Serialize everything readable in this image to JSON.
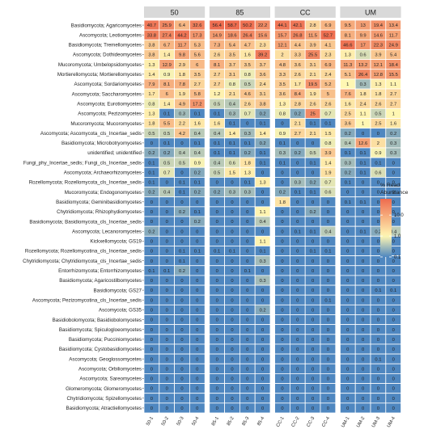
{
  "chart_data": {
    "type": "heatmap",
    "legend": {
      "title_lines": [
        "% Read",
        "Abundance"
      ],
      "ticks": [
        10.0,
        1.0,
        0.1
      ],
      "tick_labels": [
        "10.0",
        "1.0",
        "0.1"
      ],
      "scale": "log",
      "placement": "right"
    },
    "colors": {
      "high": "#ee6b4e",
      "mid": "#fff7b3",
      "low": "#4f87c0"
    },
    "facets": [
      {
        "name": "50",
        "samples": [
          "50-1",
          "50-2",
          "50-3",
          "50-4"
        ]
      },
      {
        "name": "85",
        "samples": [
          "85-1",
          "85-2",
          "85-3",
          "85-4"
        ]
      },
      {
        "name": "CC",
        "samples": [
          "CC-1",
          "CC-2",
          "CC-3",
          "CC-4"
        ]
      },
      {
        "name": "UM",
        "samples": [
          "UM-1",
          "UM-2",
          "UM-3",
          "UM-4"
        ]
      }
    ],
    "rows": [
      "Basidiomycota; Agaricomycetes",
      "Ascomycota; Leotiomycetes",
      "Basidiomycota; Tremellomycetes",
      "Ascomycota; Dothideomycetes",
      "Mucoromycota; Umbelopsidomycetes",
      "Mortierellomycota; Mortierellomycetes",
      "Ascomycota; Sordariomycetes",
      "Ascomycota; Saccharomycetes",
      "Ascomycota; Eurotiomycetes",
      "Ascomycota; Pezizomycetes",
      "Mucoromycota; Mucoromycetes",
      "Ascomycota; Ascomycota_cls_Incertae_sedis",
      "Basidiomycota; Microbotryomycetes",
      "unidentified; unidentified",
      "Fungi_phy_Incertae_sedis; Fungi_cls_Incertae_sedis",
      "Ascomycota; Archaeorhizomycetes",
      "Rozellomycota; Rozellomycota_cls_Incertae_sedis",
      "Mucoromycota; Endogonomycetes",
      "Basidiomycota; Geminibasidiomycetes",
      "Chytridiomycota; Rhizophydiomycetes",
      "Basidiomycota; Basidiomycota_cls_Incertae_sedis",
      "Ascomycota; Lecanoromycetes",
      "Kickxellomycota; GS19",
      "Rozellomycota; Rozellomycotina_cls_Incertae_sedis",
      "Chytridiomycota; Chytridiomycota_cls_Incertae_sedis",
      "Entorrhizomycota; Entorrhizomycetes",
      "Basidiomycota; Agaricostilbomycetes",
      "Basidiomycota; GS27",
      "Ascomycota; Pezizomycotina_cls_Incertae_sedis",
      "Ascomycota; GS35",
      "Basidiobolomycota; Basidiobolomycetes",
      "Basidiomycota; Spiculogloeomycetes",
      "Basidiomycota; Pucciniomycetes",
      "Basidiomycota; Cystobasidiomycetes",
      "Ascomycota; Geoglossomycetes",
      "Ascomycota; Orbiliomycetes",
      "Ascomycota; Sareomycetes",
      "Glomeromycota; Glomeromycetes",
      "Chytridiomycota; Spizellomycetes",
      "Basidiomycota; Atractiellomycetes"
    ],
    "values": [
      [
        40.7,
        25.9,
        6.4,
        32.6,
        56.4,
        58.7,
        50.2,
        22.2,
        44.1,
        42.1,
        2.8,
        6.9,
        9.5,
        13,
        19.4,
        13.4
      ],
      [
        33.8,
        27.4,
        44.2,
        17.3,
        14.9,
        18.6,
        26.4,
        15.6,
        15.7,
        26.8,
        11.5,
        52.7,
        8.1,
        9.9,
        14.6,
        11.7
      ],
      [
        3.8,
        6.7,
        11.7,
        5.3,
        7.3,
        5.4,
        4.7,
        2.3,
        12.1,
        4.4,
        3.9,
        4.1,
        46.6,
        17,
        22.3,
        24.9
      ],
      [
        3.8,
        1.4,
        9.8,
        5.6,
        2.6,
        3.5,
        1.6,
        39.2,
        2.0,
        3.3,
        25.5,
        2.3,
        1.3,
        0.6,
        3.9,
        5.4
      ],
      [
        1.3,
        12.9,
        2.9,
        6,
        8.1,
        3.7,
        3.5,
        3.7,
        4.8,
        3.6,
        3.1,
        6.9,
        11.3,
        13.2,
        12.1,
        18.4
      ],
      [
        1.4,
        0.9,
        1.8,
        3.5,
        2.7,
        3.1,
        0.8,
        3.6,
        3.3,
        2.6,
        2.1,
        2.4,
        5.1,
        26.4,
        12.8,
        15.5
      ],
      [
        7.9,
        8.1,
        7.8,
        2.7,
        2.7,
        0.8,
        0.5,
        2.4,
        3.5,
        1.7,
        19.5,
        5.2,
        1,
        0.3,
        1.3,
        1.1
      ],
      [
        1.7,
        6,
        1.9,
        5.8,
        1.2,
        2.1,
        4.6,
        3.1,
        3.6,
        8.4,
        1.9,
        5,
        7.6,
        1.8,
        1.8,
        2.7
      ],
      [
        0.8,
        1.4,
        4.9,
        17.2,
        0.5,
        0.4,
        2.6,
        3.8,
        1.3,
        2.8,
        2.6,
        2.6,
        1.6,
        2.4,
        2.6,
        2.7
      ],
      [
        1.3,
        0.1,
        0.3,
        0.1,
        0.1,
        0.3,
        0.7,
        0.2,
        0.8,
        0.2,
        25,
        0.7,
        2.5,
        1.1,
        0.5,
        1
      ],
      [
        1.8,
        5.5,
        2.2,
        1.6,
        1.6,
        0.1,
        0,
        0.1,
        0,
        2.1,
        0.1,
        0.1,
        3.6,
        1,
        2.5,
        1.6
      ],
      [
        0.5,
        0.5,
        4.2,
        0.4,
        0.4,
        1.4,
        0.3,
        1.4,
        0.9,
        2.7,
        2.1,
        1.5,
        0.2,
        0,
        0,
        0.2
      ],
      [
        0,
        0.1,
        0,
        0.1,
        0.1,
        0.1,
        0.1,
        0.2,
        0.1,
        0,
        0,
        0.8,
        0.4,
        12.6,
        2,
        0.3
      ],
      [
        0.2,
        0.2,
        0.4,
        0.4,
        0.1,
        0.1,
        0.2,
        0.1,
        0.3,
        0.2,
        0.5,
        3.9,
        0.1,
        0.1,
        0.9,
        0.3
      ],
      [
        0.1,
        0.5,
        0.5,
        0.9,
        0.4,
        0.6,
        1.8,
        0.1,
        0.1,
        0,
        0.1,
        1.4,
        0.3,
        0.1,
        0.1,
        0
      ],
      [
        0.1,
        0.7,
        0,
        0.2,
        0.5,
        1.5,
        1.3,
        0,
        0,
        0,
        0,
        1.9,
        0.2,
        0.1,
        0.6,
        0
      ],
      [
        0.1,
        0,
        0.1,
        0.1,
        0,
        0,
        0.1,
        1.3,
        0,
        0.3,
        0.2,
        0.7,
        0.1,
        0,
        0,
        0
      ],
      [
        0.2,
        0.4,
        0.1,
        0.2,
        0.2,
        0.3,
        0.3,
        0,
        0.2,
        0.1,
        0.1,
        0.6,
        0,
        0,
        0,
        0
      ],
      [
        0,
        0,
        0,
        0,
        0,
        0,
        0,
        0,
        1.8,
        0,
        0,
        0,
        0.1,
        0.1,
        0,
        0
      ],
      [
        0,
        0,
        0.2,
        0.1,
        0,
        0,
        0,
        1.1,
        0,
        0,
        0.2,
        0,
        0,
        0,
        0,
        0
      ],
      [
        0,
        0,
        0,
        0.2,
        0,
        0,
        0,
        0.4,
        0,
        0,
        0,
        0,
        0,
        0,
        0,
        0
      ],
      [
        0.2,
        0,
        0,
        0,
        0,
        0,
        0,
        0,
        0,
        0.1,
        0.1,
        0.4,
        0,
        0.1,
        0.2,
        0.4
      ],
      [
        0,
        0,
        0,
        0,
        0,
        0,
        0,
        1.1,
        0,
        0,
        0,
        0,
        0,
        0,
        0,
        0
      ],
      [
        0,
        0,
        0.1,
        0.1,
        0.1,
        0.1,
        0,
        0.1,
        0,
        0,
        0.1,
        0.1,
        0,
        0,
        0,
        0
      ],
      [
        0,
        0,
        0.1,
        0,
        0,
        0,
        0,
        0.3,
        0,
        0,
        0,
        0,
        0,
        0,
        0,
        0
      ],
      [
        0.1,
        0.1,
        0.2,
        0,
        0,
        0,
        0.1,
        0,
        0,
        0,
        0,
        0,
        0,
        0,
        0,
        0
      ],
      [
        0,
        0,
        0,
        0,
        0,
        0,
        0,
        0.3,
        0,
        0,
        0,
        0,
        0,
        0,
        0,
        0
      ],
      [
        0,
        0,
        0,
        0,
        0,
        0,
        0,
        0,
        0,
        0,
        0,
        0,
        0,
        0,
        0.1,
        0.1
      ],
      [
        0,
        0,
        0,
        0,
        0,
        0,
        0,
        0,
        0,
        0,
        0,
        0.1,
        0,
        0,
        0,
        0
      ],
      [
        0,
        0,
        0,
        0,
        0,
        0,
        0,
        0.2,
        0,
        0,
        0,
        0,
        0,
        0,
        0,
        0
      ],
      [
        0,
        0,
        0,
        0,
        0,
        0,
        0,
        0,
        0,
        0,
        0,
        0,
        0,
        0,
        0,
        0
      ],
      [
        0,
        0,
        0,
        0,
        0,
        0,
        0,
        0,
        0,
        0,
        0,
        0,
        0,
        0,
        0,
        0
      ],
      [
        0,
        0,
        0,
        0,
        0,
        0,
        0,
        0,
        0,
        0,
        0,
        0,
        0,
        0,
        0,
        0
      ],
      [
        0,
        0,
        0,
        0,
        0,
        0,
        0,
        0,
        0,
        0,
        0,
        0,
        0,
        0,
        0,
        0
      ],
      [
        0,
        0,
        0,
        0,
        0,
        0,
        0,
        0,
        0,
        0,
        0,
        0,
        0,
        0,
        0.1,
        0
      ],
      [
        0,
        0,
        0,
        0,
        0,
        0,
        0,
        0,
        0,
        0,
        0,
        0,
        0,
        0,
        0,
        0
      ],
      [
        0,
        0,
        0,
        0,
        0,
        0,
        0,
        0,
        0,
        0,
        0,
        0,
        0,
        0,
        0,
        0
      ],
      [
        0,
        0,
        0,
        0,
        0,
        0,
        0,
        0,
        0,
        0,
        0,
        0,
        0,
        0,
        0,
        0
      ],
      [
        0,
        0,
        0,
        0,
        0,
        0,
        0,
        0,
        0,
        0,
        0,
        0,
        0,
        0,
        0,
        0
      ],
      [
        0,
        0,
        0,
        0,
        0,
        0,
        0,
        0,
        0,
        0,
        0,
        0,
        0,
        0,
        0,
        0
      ]
    ]
  }
}
